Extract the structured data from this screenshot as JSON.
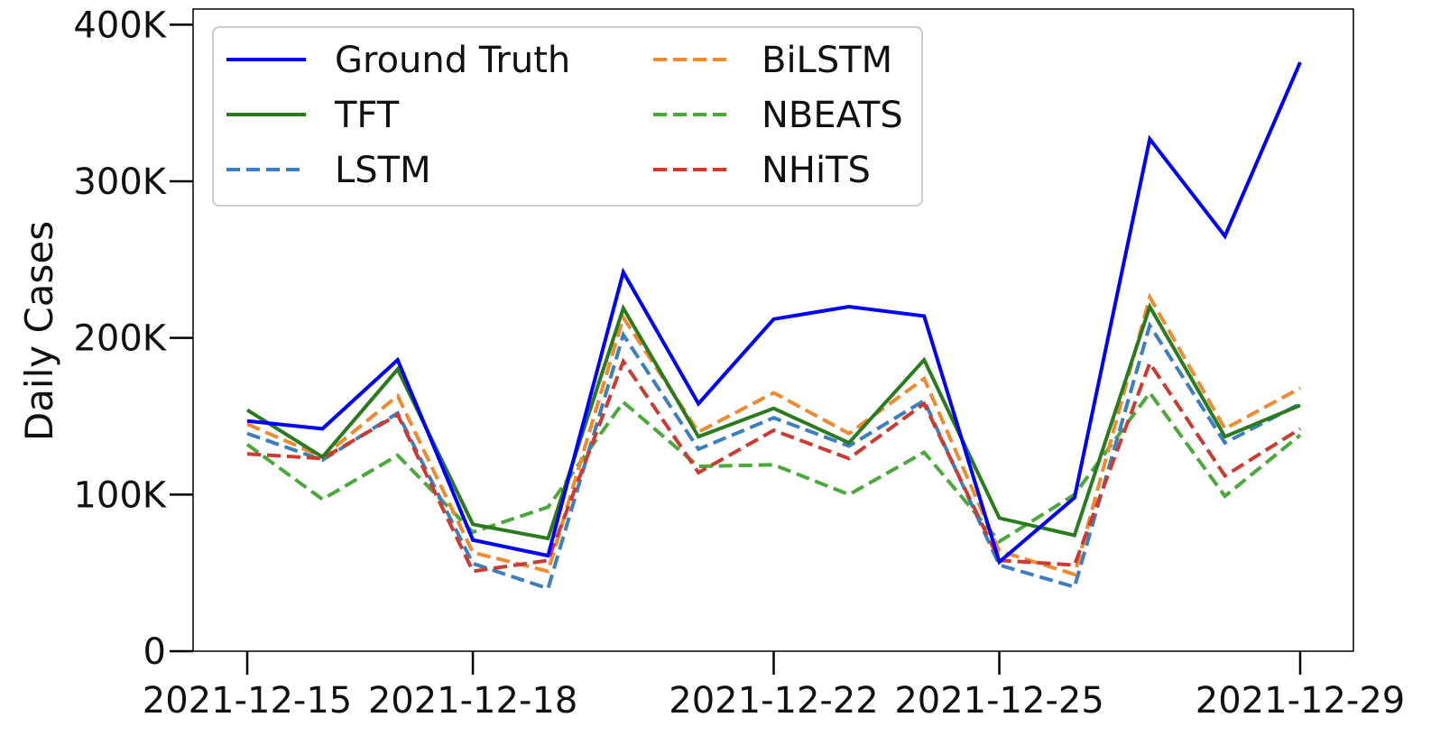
{
  "chart_data": {
    "type": "line",
    "title": "",
    "xlabel": "",
    "ylabel": "Daily Cases",
    "ylim": [
      0,
      410000
    ],
    "x": [
      "2021-12-15",
      "2021-12-16",
      "2021-12-17",
      "2021-12-18",
      "2021-12-19",
      "2021-12-20",
      "2021-12-21",
      "2021-12-22",
      "2021-12-23",
      "2021-12-24",
      "2021-12-25",
      "2021-12-26",
      "2021-12-27",
      "2021-12-28",
      "2021-12-29"
    ],
    "x_ticks": [
      "2021-12-15",
      "2021-12-18",
      "2021-12-22",
      "2021-12-25",
      "2021-12-29"
    ],
    "y_ticks": [
      0,
      100000,
      200000,
      300000,
      400000
    ],
    "y_tick_labels": [
      "0",
      "100K",
      "200K",
      "300K",
      "400K"
    ],
    "legend": {
      "position": "upper-left",
      "columns": 2
    },
    "series": [
      {
        "name": "Ground Truth",
        "color": "#0000ff",
        "style": "solid",
        "values": [
          147000,
          142000,
          186000,
          71000,
          61000,
          242000,
          158000,
          212000,
          220000,
          214000,
          57000,
          98000,
          327000,
          265000,
          376000
        ]
      },
      {
        "name": "TFT",
        "color": "#2a7a1e",
        "style": "solid",
        "values": [
          154000,
          124000,
          180000,
          81000,
          72000,
          219000,
          137000,
          155000,
          133000,
          186000,
          85000,
          74000,
          220000,
          137000,
          157000
        ]
      },
      {
        "name": "LSTM",
        "color": "#3b7fc0",
        "style": "dashed",
        "values": [
          139000,
          122000,
          152000,
          56000,
          40000,
          202000,
          129000,
          149000,
          131000,
          160000,
          55000,
          41000,
          208000,
          133000,
          158000
        ]
      },
      {
        "name": "BiLSTM",
        "color": "#f08a30",
        "style": "dashed",
        "values": [
          145000,
          124000,
          163000,
          63000,
          51000,
          213000,
          140000,
          165000,
          139000,
          174000,
          64000,
          49000,
          226000,
          142000,
          168000
        ]
      },
      {
        "name": "NBEATS",
        "color": "#4ca83c",
        "style": "dashed",
        "values": [
          132000,
          97000,
          125000,
          76000,
          92000,
          159000,
          118000,
          119000,
          100000,
          127000,
          70000,
          100000,
          165000,
          99000,
          138000
        ]
      },
      {
        "name": "NHiTS",
        "color": "#cc3a32",
        "style": "dashed",
        "values": [
          126000,
          123000,
          151000,
          51000,
          58000,
          185000,
          114000,
          141000,
          123000,
          158000,
          58000,
          55000,
          184000,
          112000,
          142000
        ]
      }
    ]
  }
}
